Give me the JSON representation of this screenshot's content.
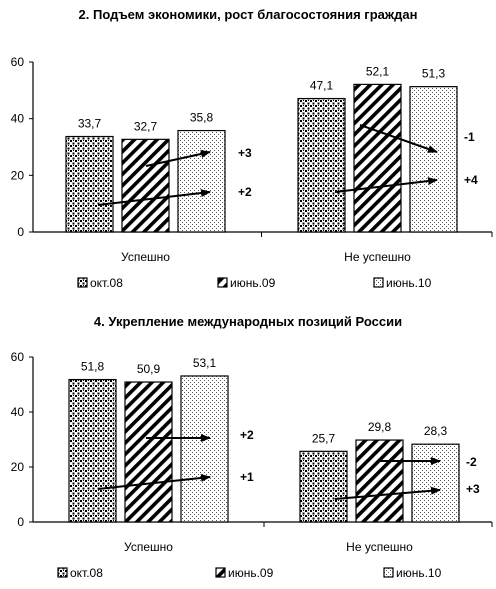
{
  "chart_data": [
    {
      "type": "bar",
      "title": "2. Подъем экономики, рост благосостояния граждан",
      "categories": [
        "Успешно",
        "Не успешно"
      ],
      "series": [
        {
          "name": "окт.08",
          "values": [
            33.7,
            47.1
          ],
          "labels": [
            "33,7",
            "47,1"
          ],
          "pattern": "dots"
        },
        {
          "name": "июнь.09",
          "values": [
            32.7,
            52.1
          ],
          "labels": [
            "32,7",
            "52,1"
          ],
          "pattern": "hatch"
        },
        {
          "name": "июнь.10",
          "values": [
            35.8,
            51.3
          ],
          "labels": [
            "35,8",
            "51,3"
          ],
          "pattern": "fine"
        }
      ],
      "ylim": [
        0,
        60
      ],
      "yticks": [
        0,
        20,
        40,
        60
      ],
      "xlabel": "",
      "ylabel": "",
      "grid": false,
      "legend": "bottom",
      "annotations": [
        {
          "category": 0,
          "from": 0,
          "to": 2,
          "text": "+2"
        },
        {
          "category": 0,
          "from": 1,
          "to": 2,
          "text": "+3"
        },
        {
          "category": 1,
          "from": 1,
          "to": 2,
          "text": "-1"
        },
        {
          "category": 1,
          "from": 0,
          "to": 2,
          "text": "+4"
        }
      ]
    },
    {
      "type": "bar",
      "title": "4. Укрепление международных позиций России",
      "categories": [
        "Успешно",
        "Не успешно"
      ],
      "series": [
        {
          "name": "окт.08",
          "values": [
            51.8,
            25.7
          ],
          "labels": [
            "51,8",
            "25,7"
          ],
          "pattern": "dots"
        },
        {
          "name": "июнь.09",
          "values": [
            50.9,
            29.8
          ],
          "labels": [
            "50,9",
            "29,8"
          ],
          "pattern": "hatch"
        },
        {
          "name": "июнь.10",
          "values": [
            53.1,
            28.3
          ],
          "labels": [
            "53,1",
            "28,3"
          ],
          "pattern": "fine"
        }
      ],
      "ylim": [
        0,
        60
      ],
      "yticks": [
        0,
        20,
        40,
        60
      ],
      "xlabel": "",
      "ylabel": "",
      "grid": false,
      "legend": "bottom",
      "annotations": [
        {
          "category": 0,
          "from": 1,
          "to": 2,
          "text": "+2"
        },
        {
          "category": 0,
          "from": 0,
          "to": 2,
          "text": "+1"
        },
        {
          "category": 1,
          "from": 1,
          "to": 2,
          "text": "-2"
        },
        {
          "category": 1,
          "from": 0,
          "to": 2,
          "text": "+3"
        }
      ]
    }
  ]
}
